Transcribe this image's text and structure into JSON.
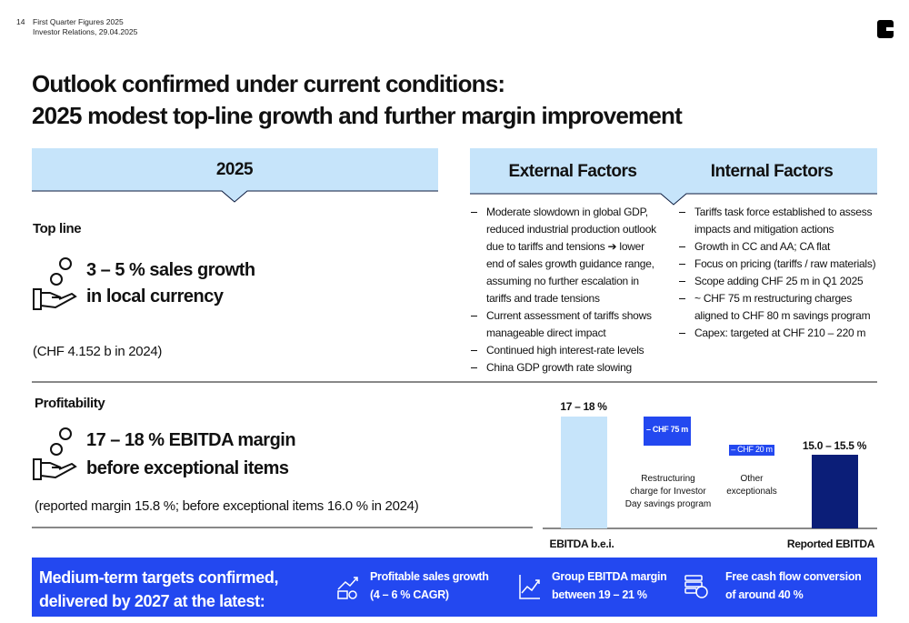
{
  "header": {
    "page_number": "14",
    "doc_title": "First Quarter Figures 2025",
    "doc_subtitle": "Investor Relations, 29.04.2025"
  },
  "title": [
    "Outlook confirmed under current conditions:",
    "2025 modest top-line growth and further margin improvement"
  ],
  "outlook": {
    "heading": "2025",
    "top_line": {
      "label": "Top line",
      "headline": [
        "3 – 5 % sales growth",
        "in local currency"
      ],
      "note": "(CHF 4.152 b in 2024)"
    },
    "profitability": {
      "label": "Profitability",
      "headline": [
        "17 – 18 % EBITDA margin",
        "before exceptional items"
      ],
      "note": "(reported margin 15.8 %; before exceptional items 16.0 % in 2024)"
    }
  },
  "external": {
    "heading": "External Factors",
    "items": [
      "Moderate slowdown in global GDP, reduced industrial production outlook due to tariffs and tensions ➔ lower end of sales growth guidance range, assuming no further escalation in tariffs and trade tensions",
      "Current assessment of tariffs shows manageable direct impact",
      "Continued high interest-rate levels",
      "China GDP growth rate slowing"
    ]
  },
  "internal": {
    "heading": "Internal Factors",
    "items": [
      "Tariffs task force established to assess impacts and mitigation actions",
      "Growth in CC and AA; CA flat",
      "Focus on pricing (tariffs / raw materials)",
      "Scope adding CHF 25 m in Q1 2025",
      "~ CHF 75 m restructuring charges aligned to CHF 80 m savings program",
      "Capex: targeted at CHF 210 – 220 m"
    ]
  },
  "bridge": {
    "start_value": "17 – 18 %",
    "start_label": "EBITDA b.e.i.",
    "steps": [
      {
        "value": "– CHF 75 m",
        "label": [
          "Restructuring",
          "charge for Investor",
          "Day savings program"
        ]
      },
      {
        "value": "– CHF 20 m",
        "label": [
          "Other",
          "exceptionals"
        ]
      }
    ],
    "end_value": "15.0 – 15.5 %",
    "end_label": "Reported EBITDA"
  },
  "footer": {
    "headline": [
      "Medium-term targets confirmed,",
      "delivered by 2027 at the latest:"
    ],
    "targets": [
      {
        "title": "Profitable sales growth",
        "detail": "(4 – 6 % CAGR)"
      },
      {
        "title": "Group EBITDA margin",
        "detail": "between 19 – 21 %"
      },
      {
        "title": "Free cash flow conversion",
        "detail": "of around 40 %"
      }
    ]
  }
}
